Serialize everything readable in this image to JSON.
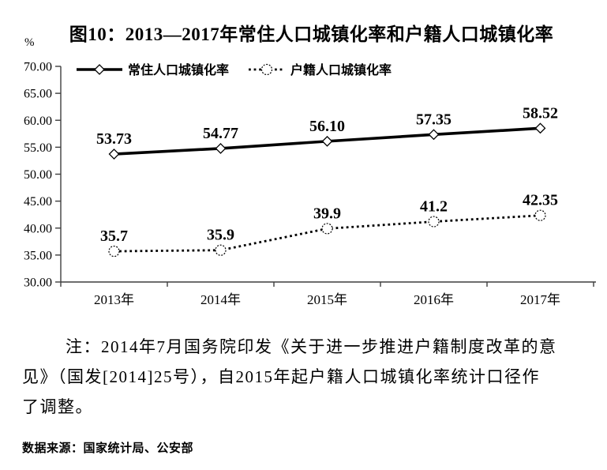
{
  "chart_data": {
    "type": "line",
    "title": "图10：2013—2017年常住人口城镇化率和户籍人口城镇化率",
    "ylabel": "%",
    "xlabel": "",
    "categories": [
      "2013年",
      "2014年",
      "2015年",
      "2016年",
      "2017年"
    ],
    "series": [
      {
        "name": "常住人口城镇化率",
        "values": [
          53.73,
          54.77,
          56.1,
          57.35,
          58.52
        ],
        "labels": [
          "53.73",
          "54.77",
          "56.10",
          "57.35",
          "58.52"
        ],
        "line": "solid",
        "marker": "diamond"
      },
      {
        "name": "户籍人口城镇化率",
        "values": [
          35.7,
          35.9,
          39.9,
          41.2,
          42.35
        ],
        "labels": [
          "35.7",
          "35.9",
          "39.9",
          "41.2",
          "42.35"
        ],
        "line": "dotted",
        "marker": "circle"
      }
    ],
    "ylim": [
      30,
      70
    ],
    "y_ticks": [
      "30.00",
      "35.00",
      "40.00",
      "45.00",
      "50.00",
      "55.00",
      "60.00",
      "65.00",
      "70.00"
    ],
    "legend_position": "top",
    "grid": false,
    "line_color": "#000000",
    "marker_fill": "#ffffff"
  },
  "note": {
    "lines": [
      "注：2014年7月国务院印发《关于进一步推进户籍制度改革的意",
      "见》（国发[2014]25号），自2015年起户籍人口城镇化率统计口径作",
      "了调整。"
    ]
  },
  "source": "数据来源：国家统计局、公安部"
}
